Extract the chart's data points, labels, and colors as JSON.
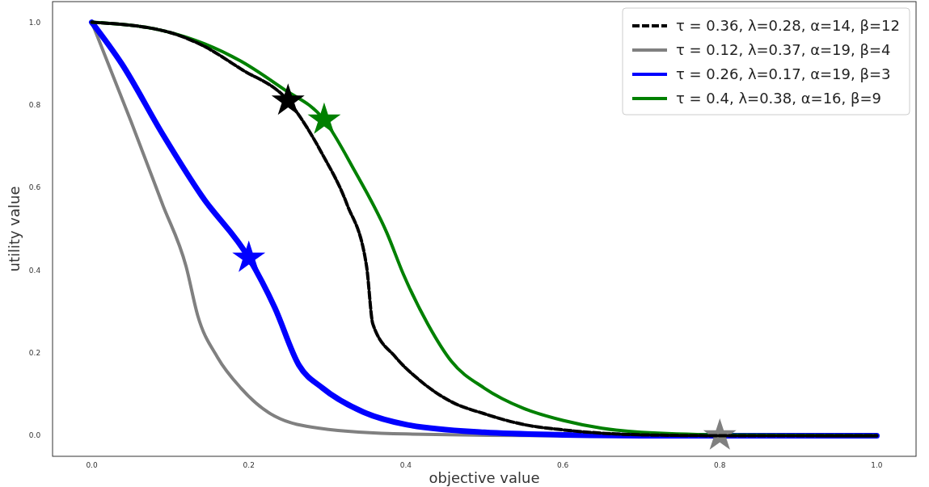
{
  "chart_data": {
    "type": "line",
    "xlabel": "objective value",
    "ylabel": "utility value",
    "xlim": [
      -0.05,
      1.05
    ],
    "ylim": [
      -0.05,
      1.05
    ],
    "xticks": [
      {
        "value": 0,
        "label": "0.0"
      },
      {
        "value": 0.2,
        "label": "0.2"
      },
      {
        "value": 0.4,
        "label": "0.4"
      },
      {
        "value": 0.6,
        "label": "0.6"
      },
      {
        "value": 0.8,
        "label": "0.8"
      },
      {
        "value": 1,
        "label": "1.0"
      }
    ],
    "yticks": [
      {
        "value": 0,
        "label": "0.0"
      },
      {
        "value": 0.2,
        "label": "0.2"
      },
      {
        "value": 0.4,
        "label": "0.4"
      },
      {
        "value": 0.6,
        "label": "0.6"
      },
      {
        "value": 0.8,
        "label": "0.8"
      },
      {
        "value": 1,
        "label": "1.0"
      }
    ],
    "grid": false,
    "legend": "top right",
    "series": [
      {
        "name": "τ = 0.36, λ=0.28, α=14, β=12",
        "color": "#000000",
        "line_style": "dashed",
        "x": [
          0,
          0.09,
          0.14,
          0.19,
          0.25,
          0.294,
          0.325,
          0.35,
          0.358,
          0.387,
          0.417,
          0.458,
          0.5,
          0.55,
          0.6,
          0.65,
          0.7,
          0.8,
          1
        ],
        "values": [
          1,
          0.98,
          0.945,
          0.887,
          0.81,
          0.68,
          0.56,
          0.41,
          0.27,
          0.19,
          0.135,
          0.082,
          0.053,
          0.027,
          0.014,
          0.006,
          0.002,
          0,
          0
        ]
      },
      {
        "name": "τ = 0.12, λ=0.37, α=19, β=4",
        "color": "#808080",
        "line_style": "solid",
        "x": [
          0,
          0.05,
          0.09,
          0.12,
          0.135,
          0.16,
          0.19,
          0.233,
          0.29,
          0.4,
          0.6,
          1
        ],
        "values": [
          1,
          0.76,
          0.56,
          0.41,
          0.29,
          0.19,
          0.115,
          0.047,
          0.018,
          0.004,
          0,
          0
        ]
      },
      {
        "name": "τ = 0.26, λ=0.17, α=19, β=3",
        "color": "#0000ff",
        "line_style": "solid",
        "x": [
          0,
          0.038,
          0.09,
          0.14,
          0.2,
          0.233,
          0.264,
          0.294,
          0.346,
          0.4,
          0.5,
          0.6,
          0.7,
          1
        ],
        "values": [
          1,
          0.9,
          0.73,
          0.58,
          0.43,
          0.31,
          0.17,
          0.115,
          0.057,
          0.027,
          0.008,
          0.002,
          0,
          0
        ]
      },
      {
        "name": "τ = 0.4, λ=0.38, α=16, β=9",
        "color": "#008000",
        "line_style": "solid",
        "x": [
          0,
          0.09,
          0.19,
          0.243,
          0.296,
          0.335,
          0.376,
          0.397,
          0.428,
          0.458,
          0.5,
          0.55,
          0.6,
          0.65,
          0.7,
          0.8,
          1
        ],
        "values": [
          1,
          0.98,
          0.906,
          0.84,
          0.764,
          0.64,
          0.49,
          0.39,
          0.27,
          0.18,
          0.115,
          0.066,
          0.037,
          0.018,
          0.008,
          0.002,
          0
        ]
      },
      {
        "type": "scatter",
        "marker": "star",
        "color": "#000000",
        "x": [
          0.25
        ],
        "values": [
          0.81
        ]
      },
      {
        "type": "scatter",
        "marker": "star",
        "color": "#808080",
        "x": [
          0.8
        ],
        "values": [
          0
        ]
      },
      {
        "type": "scatter",
        "marker": "star",
        "color": "#0000ff",
        "x": [
          0.2
        ],
        "values": [
          0.43
        ]
      },
      {
        "type": "scatter",
        "marker": "star",
        "color": "#008000",
        "x": [
          0.296
        ],
        "values": [
          0.764
        ]
      }
    ]
  }
}
